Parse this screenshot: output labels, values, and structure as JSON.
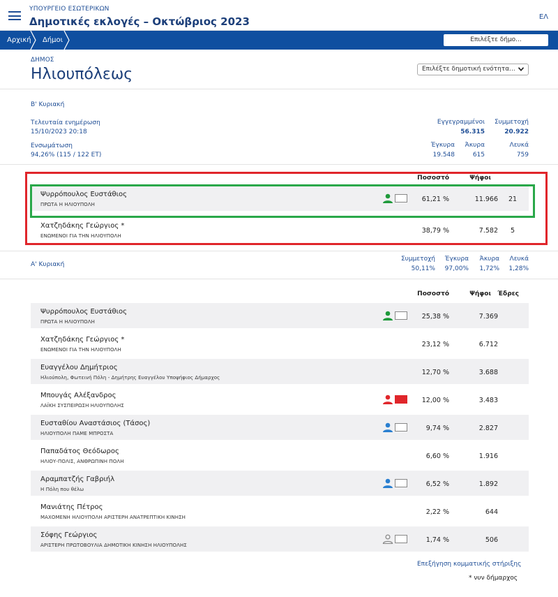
{
  "header": {
    "ministry": "ΥΠΟΥΡΓΕΙΟ ΕΣΩΤΕΡΙΚΩΝ",
    "title": "Δημοτικές εκλογές – Οκτώβριος 2023",
    "lang": "ΕΛ"
  },
  "nav": {
    "home": "Αρχική",
    "municipalities": "Δήμοι",
    "select_placeholder": "Επιλέξτε δήμο..."
  },
  "municipality": {
    "label": "ΔΗΜΟΣ",
    "name": "Ηλιουπόλεως",
    "unit_select": "Επιλέξτε δημοτική ενότητα..."
  },
  "round2": {
    "title": "Β' Κυριακή",
    "last_update_label": "Τελευταία ενημέρωση",
    "last_update_value": "15/10/2023 20:18",
    "integration_label": "Ενσωμάτωση",
    "integration_value": "94,26% (115 / 122 ΕΤ)",
    "registered_label": "Εγγεγραμμένοι",
    "registered_value": "56.315",
    "turnout_label": "Συμμετοχή",
    "turnout_value": "20.922",
    "valid_label": "Έγκυρα",
    "valid_value": "19.548",
    "invalid_label": "Άκυρα",
    "invalid_value": "615",
    "blank_label": "Λευκά",
    "blank_value": "759",
    "col_pct": "Ποσοστό",
    "col_votes": "Ψήφοι",
    "candidates": [
      {
        "name": "Ψυρρόπουλος Ευστάθιος",
        "party": "ΠΡΩΤΑ Η ΗΛΙΟΥΠΟΛΗ",
        "pct": "61,21 %",
        "votes": "11.966",
        "seats": "21"
      },
      {
        "name": "Χατζηδάκης Γεώργιος *",
        "party": "ΕΝΩΜΕΝΟΙ ΓΙΑ ΤΗΝ ΗΛΙΟΥΠΟΛΗ",
        "pct": "38,79 %",
        "votes": "7.582",
        "seats": "5"
      }
    ]
  },
  "round1": {
    "title": "Α' Κυριακή",
    "turnout_label": "Συμμετοχή",
    "turnout_value": "50,11%",
    "valid_label": "Έγκυρα",
    "valid_value": "97,00%",
    "invalid_label": "Άκυρα",
    "invalid_value": "1,72%",
    "blank_label": "Λευκά",
    "blank_value": "1,28%",
    "col_pct": "Ποσοστό",
    "col_votes": "Ψήφοι",
    "col_seats": "Έδρες",
    "candidates": [
      {
        "name": "Ψυρρόπουλος Ευστάθιος",
        "party": "ΠΡΩΤΑ Η ΗΛΙΟΥΠΟΛΗ",
        "pct": "25,38 %",
        "votes": "7.369"
      },
      {
        "name": "Χατζηδάκης Γεώργιος *",
        "party": "ΕΝΩΜΕΝΟΙ ΓΙΑ ΤΗΝ ΗΛΙΟΥΠΟΛΗ",
        "pct": "23,12 %",
        "votes": "6.712"
      },
      {
        "name": "Ευαγγέλου Δημήτριος",
        "party": "Ηλιούπολη, Φωτεινή Πόλη - Δημήτρης Ευαγγέλου Υποψήφιος Δήμαρχος",
        "pct": "12,70 %",
        "votes": "3.688"
      },
      {
        "name": "Μπουγάς Αλέξανδρος",
        "party": "ΛΑΪΚΗ ΣΥΣΠΕΙΡΩΣΗ ΗΛΙΟΥΠΟΛΗΣ",
        "pct": "12,00 %",
        "votes": "3.483"
      },
      {
        "name": "Ευσταθίου Αναστάσιος (Τάσος)",
        "party": "ΗΛΙΟΥΠΟΛΗ ΠΑΜΕ ΜΠΡΟΣΤΑ",
        "pct": "9,74 %",
        "votes": "2.827"
      },
      {
        "name": "Παπαδάτος Θεόδωρος",
        "party": "ΗΛΙΟΥ-ΠΟΛΙΣ, ΑΝΘΡΩΠΙΝΗ ΠΟΛΗ",
        "pct": "6,60 %",
        "votes": "1.916"
      },
      {
        "name": "Αραμπατζής Γαβριήλ",
        "party": "Η Πόλη που θέλω",
        "pct": "6,52 %",
        "votes": "1.892"
      },
      {
        "name": "Μανιάτης Πέτρος",
        "party": "ΜΑΧΟΜΕΝΗ ΗΛΙΟΥΠΟΛΗ ΑΡΙΣΤΕΡΗ ΑΝΑΤΡΕΠΤΙΚΗ ΚΙΝΗΣΗ",
        "pct": "2,22 %",
        "votes": "644"
      },
      {
        "name": "Σόφης Γεώργιος",
        "party": "ΑΡΙΣΤΕΡΗ ΠΡΩΤΟΒΟΥΛΙΑ ΔΗΜΟΤΙΚΗ ΚΙΝΗΣΗ ΗΛΙΟΥΠΟΛΗΣ",
        "pct": "1,74 %",
        "votes": "506"
      }
    ],
    "support_link": "Επεξήγηση κομματικής στήριξης",
    "footnote": "* νυν δήμαρχος"
  },
  "icons": {
    "menu": "hamburger-icon",
    "chevron": "chevron-down-icon",
    "person": "person-icon",
    "flag": "party-flag-icon"
  },
  "colors": {
    "brand": "#0f4fa0",
    "highlight_red": "#e0262b",
    "highlight_green": "#2aa84a",
    "support_green": "#1f9a3b",
    "support_red": "#e0262b",
    "support_blue": "#2a7fd0",
    "support_gray": "#8a8a8a"
  }
}
